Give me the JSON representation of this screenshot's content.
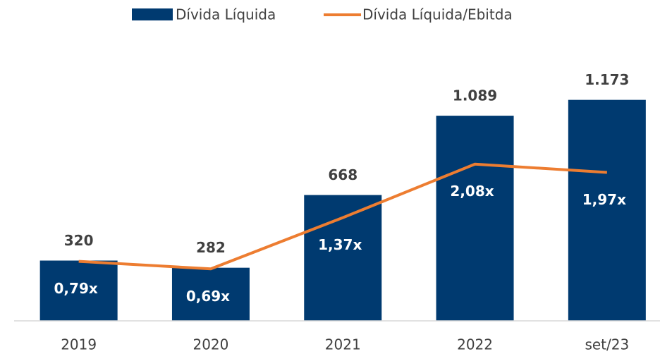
{
  "chart_data": {
    "type": "bar",
    "categories": [
      "2019",
      "2020",
      "2021",
      "2022",
      "set/23"
    ],
    "ylim": [
      0,
      1400
    ],
    "y2lim": [
      0,
      3.5
    ],
    "series": [
      {
        "name": "Dívida Líquida",
        "type": "bar",
        "color": "#003a70",
        "values": [
          320,
          282,
          668,
          1089,
          1173
        ],
        "value_labels": [
          "320",
          "282",
          "668",
          "1.089",
          "1.173"
        ]
      },
      {
        "name": "Dívida Líquida/Ebitda",
        "type": "line",
        "axis": "y2",
        "color": "#ed7d31",
        "values": [
          0.79,
          0.69,
          1.37,
          2.08,
          1.97
        ],
        "value_labels": [
          "0,79x",
          "0,69x",
          "1,37x",
          "2,08x",
          "1,97x"
        ]
      }
    ]
  }
}
